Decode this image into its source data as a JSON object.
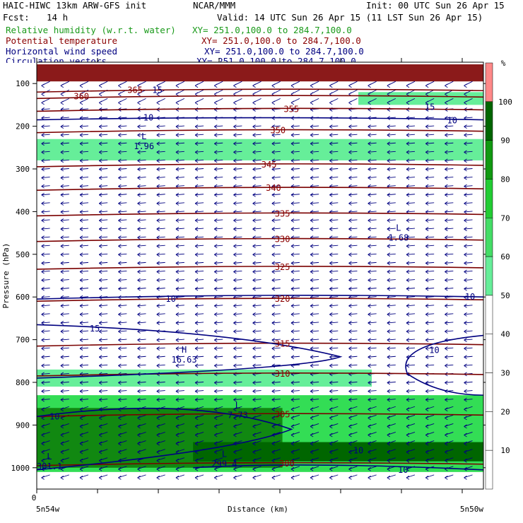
{
  "header": {
    "model": "HAIC-HIWC 13km ARW-GFS init",
    "org": "NCAR/MMM",
    "init": "Init: 00 UTC Sun 26 Apr 15",
    "fcst_label": "Fcst:",
    "fcst_value": "14 h",
    "valid": "Valid: 14 UTC Sun 26 Apr 15 (11 LST Sun 26 Apr 15)",
    "fields": [
      {
        "name": "Relative humidity (w.r.t. water)",
        "xy": "XY= 251.0,100.0 to 284.7,100.0",
        "color": "#1a9a1a"
      },
      {
        "name": "Potential temperature",
        "xy": "XY= 251.0,100.0 to 284.7,100.0",
        "color": "#8b0000"
      },
      {
        "name": "Horizontal wind speed",
        "xy": "XY= 251.0,100.0 to 284.7,100.0",
        "color": "#000080"
      },
      {
        "name": "Circulation vectors",
        "xy": "XY= 251.0,100.0 to 284.7,100.0",
        "color": "#000080"
      }
    ]
  },
  "chart_data": {
    "type": "heatmap",
    "xlabel": "Distance (km)",
    "ylabel": "Pressure (hPa)",
    "x_start_label": "5n54w",
    "x_end_label": "5n50w",
    "x_zero_label": "0",
    "yticks": [
      100,
      200,
      300,
      400,
      500,
      600,
      700,
      800,
      900,
      1000
    ],
    "ylim": [
      50,
      1050
    ],
    "colorbar": {
      "unit": "%",
      "levels": [
        10,
        20,
        30,
        40,
        50,
        60,
        70,
        80,
        90,
        100
      ],
      "colors": [
        "#ffffff",
        "#ffffff",
        "#ffffff",
        "#ffffff",
        "#ffffff",
        "#66ee99",
        "#44dd66",
        "#22cc33",
        "#119911",
        "#006600",
        "#ff8888"
      ]
    },
    "rh_bands": [
      {
        "level": "50-60",
        "p_top": 120,
        "p_bottom": 150,
        "x_from": 0.72,
        "x_to": 1.0
      },
      {
        "level": "50-60",
        "p_top": 230,
        "p_bottom": 280,
        "x_from": 0.0,
        "x_to": 1.0
      },
      {
        "level": "50-60",
        "p_top": 770,
        "p_bottom": 810,
        "x_from": 0.0,
        "x_to": 0.75
      },
      {
        "level": "60-80",
        "p_top": 830,
        "p_bottom": 1010,
        "x_from": 0.0,
        "x_to": 1.0
      },
      {
        "level": "90-100",
        "p_top": 860,
        "p_bottom": 1000,
        "x_from": 0.0,
        "x_to": 0.55
      },
      {
        "level": ">100",
        "p_top": 55,
        "p_bottom": 95,
        "x_from": 0.0,
        "x_to": 1.0
      }
    ],
    "theta_contours": [
      {
        "value": 300,
        "label": "300"
      },
      {
        "value": 305,
        "label": "305"
      },
      {
        "value": 310,
        "label": "310"
      },
      {
        "value": 315,
        "label": "315"
      },
      {
        "value": 320,
        "label": "320"
      },
      {
        "value": 325,
        "label": "325"
      },
      {
        "value": 330,
        "label": "330"
      },
      {
        "value": 335,
        "label": "335"
      },
      {
        "value": 340,
        "label": "340"
      },
      {
        "value": 345,
        "label": "345"
      },
      {
        "value": 350,
        "label": "350"
      },
      {
        "value": 355,
        "label": "355"
      },
      {
        "value": 360,
        "label": "360"
      },
      {
        "value": 365,
        "label": "365"
      }
    ],
    "wind_labels": [
      "10",
      "10",
      "10",
      "15",
      "15",
      "10",
      "10",
      "10",
      "10",
      "10",
      "15"
    ],
    "extrema": [
      {
        "type": "L",
        "value": "1.96"
      },
      {
        "type": "L",
        "value": "1.68"
      },
      {
        "type": "H",
        "value": "16.63"
      },
      {
        "type": "L",
        "value": "7.73"
      },
      {
        "type": "L",
        "value": "299.4"
      },
      {
        "type": "L",
        "value": "301.1"
      }
    ]
  }
}
